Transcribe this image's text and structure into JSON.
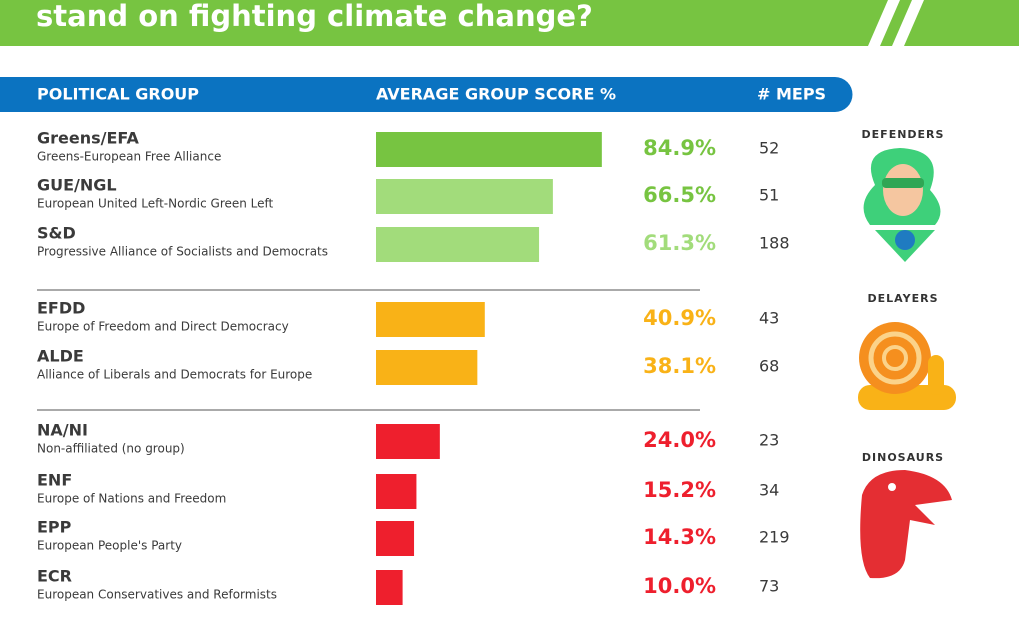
{
  "header": {
    "title": "stand on fighting climate change?"
  },
  "columns": [
    "POLITICAL GROUP",
    "AVERAGE GROUP SCORE %",
    "# MEPS"
  ],
  "groups": [
    {
      "label": "DEFENDERS",
      "rows": [
        {
          "name": "Greens/EFA",
          "description": "Greens-European Free Alliance",
          "score": 84.9,
          "score_label": "84.9%",
          "meps": 52,
          "color": "#77c441",
          "label_color": "#77c441"
        },
        {
          "name": "GUE/NGL",
          "description": "European United Left-Nordic Green Left",
          "score": 66.5,
          "score_label": "66.5%",
          "meps": 51,
          "color": "#a2dc7b",
          "label_color": "#77c441"
        },
        {
          "name": "S&D",
          "description": "Progressive Alliance of Socialists and Democrats",
          "score": 61.3,
          "score_label": "61.3%",
          "meps": 188,
          "color": "#a2dc7b",
          "label_color": "#a2dc7b"
        }
      ]
    },
    {
      "label": "DELAYERS",
      "rows": [
        {
          "name": "EFDD",
          "description": "Europe of Freedom and Direct Democracy",
          "score": 40.9,
          "score_label": "40.9%",
          "meps": 43,
          "color": "#f9b217",
          "label_color": "#f9b217"
        },
        {
          "name": "ALDE",
          "description": "Alliance of Liberals and Democrats for Europe",
          "score": 38.1,
          "score_label": "38.1%",
          "meps": 68,
          "color": "#f9b217",
          "label_color": "#f9b217"
        }
      ]
    },
    {
      "label": "DINOSAURS",
      "rows": [
        {
          "name": "NA/NI",
          "description": "Non-affiliated (no group)",
          "score": 24.0,
          "score_label": "24.0%",
          "meps": 23,
          "color": "#ee1f2d",
          "label_color": "#ee1f2d"
        },
        {
          "name": "ENF",
          "description": "Europe of Nations and Freedom",
          "score": 15.2,
          "score_label": "15.2%",
          "meps": 34,
          "color": "#ee1f2d",
          "label_color": "#ee1f2d"
        },
        {
          "name": "EPP",
          "description": "European People's Party",
          "score": 14.3,
          "score_label": "14.3%",
          "meps": 219,
          "color": "#ee1f2d",
          "label_color": "#ee1f2d"
        },
        {
          "name": "ECR",
          "description": "European Conservatives and Reformists",
          "score": 10.0,
          "score_label": "10.0%",
          "meps": 73,
          "color": "#ee1f2d",
          "label_color": "#ee1f2d"
        }
      ]
    }
  ]
}
